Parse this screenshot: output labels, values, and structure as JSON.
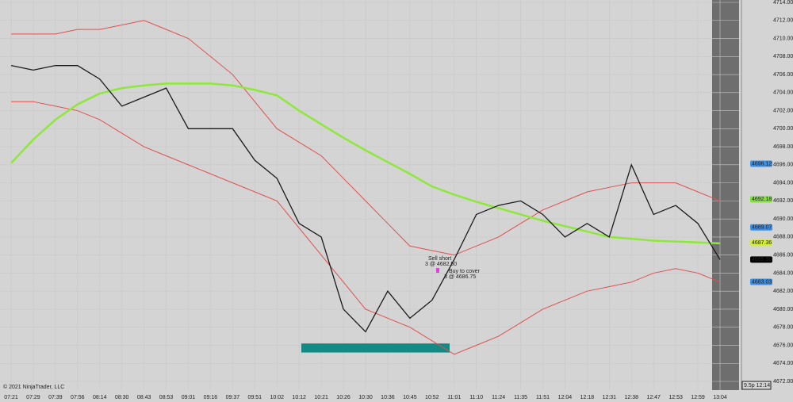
{
  "chart_data": {
    "type": "line",
    "categories": [
      "07:21",
      "07:29",
      "07:39",
      "07:56",
      "08:14",
      "08:30",
      "08:43",
      "08:53",
      "09:01",
      "09:16",
      "09:37",
      "09:51",
      "10:02",
      "10:12",
      "10:21",
      "10:26",
      "10:30",
      "10:36",
      "10:45",
      "10:52",
      "11:01",
      "11:10",
      "11:24",
      "11:35",
      "11:51",
      "12:04",
      "12:18",
      "12:31",
      "12:38",
      "12:47",
      "12:53",
      "12:59",
      "13:04"
    ],
    "series": [
      {
        "color": "#e05050",
        "values": [
          4710.5,
          4710.5,
          4710.5,
          4711,
          4711,
          4711.5,
          4712,
          4711,
          4710,
          4708,
          4706,
          4703,
          4700,
          4698.5,
          4697,
          4694.5,
          4692,
          4689.5,
          4687,
          4686.5,
          4686,
          4687,
          4688,
          4689.5,
          4691,
          4692,
          4693,
          4693.5,
          4694,
          4694,
          4694,
          4693,
          4692
        ]
      },
      {
        "color": "#e05050",
        "values": [
          4703,
          4703,
          4702.5,
          4702,
          4701,
          4699.5,
          4698,
          4697,
          4696,
          4695,
          4694,
          4693,
          4692,
          4689,
          4686,
          4683,
          4680,
          4679,
          4678,
          4676.5,
          4675,
          4676,
          4677,
          4678.5,
          4680,
          4681,
          4682,
          4682.5,
          4683,
          4684,
          4684.5,
          4684,
          4683
        ]
      },
      {
        "color": "#8ee83a",
        "values": [
          4696.2,
          4698.8,
          4701,
          4702.7,
          4703.9,
          4704.5,
          4704.8,
          4705,
          4705,
          4705,
          4704.8,
          4704.3,
          4703.7,
          4702,
          4700.5,
          4699,
          4697.6,
          4696.3,
          4695,
          4693.6,
          4692.7,
          4691.9,
          4691.2,
          4690.5,
          4689.8,
          4689.2,
          4688.6,
          4688,
          4687.8,
          4687.6,
          4687.5,
          4687.4,
          4687.3
        ]
      },
      {
        "color": "#1a1a1a",
        "values": [
          4707,
          4706.5,
          4707,
          4707,
          4705.5,
          4702.5,
          4703.5,
          4704.5,
          4700,
          4700,
          4700,
          4696.5,
          4694.5,
          4689.5,
          4688,
          4680,
          4677.5,
          4682,
          4679,
          4681,
          4685.5,
          4690.5,
          4691.5,
          4692,
          4690.5,
          4688,
          4689.5,
          4688,
          4696,
          4690.5,
          4691.5,
          4689.5,
          4685.5
        ]
      }
    ],
    "ylim": [
      4672,
      4714
    ],
    "yticks": [
      {
        "value": 4672,
        "label": "4672.00"
      },
      {
        "value": 4674,
        "label": "4674.00"
      },
      {
        "value": 4676,
        "label": "4676.00"
      },
      {
        "value": 4678,
        "label": "4678.00"
      },
      {
        "value": 4680,
        "label": "4680.00"
      },
      {
        "value": 4682,
        "label": "4682.00"
      },
      {
        "value": 4684,
        "label": "4684.00"
      },
      {
        "value": 4686,
        "label": "4686.00"
      },
      {
        "value": 4688,
        "label": "4688.00"
      },
      {
        "value": 4690,
        "label": "4690.00"
      },
      {
        "value": 4692,
        "label": "4692.00"
      },
      {
        "value": 4694,
        "label": "4694.00"
      },
      {
        "value": 4696,
        "label": "4696.00"
      },
      {
        "value": 4698,
        "label": "4698.00"
      },
      {
        "value": 4700,
        "label": "4700.00"
      },
      {
        "value": 4702,
        "label": "4702.00"
      },
      {
        "value": 4704,
        "label": "4704.00"
      },
      {
        "value": 4706,
        "label": "4706.00"
      },
      {
        "value": 4708,
        "label": "4708.00"
      },
      {
        "value": 4710,
        "label": "4710.00"
      },
      {
        "value": 4712,
        "label": "4712.00"
      },
      {
        "value": 4714,
        "label": "4714.00"
      }
    ],
    "grid": true,
    "price_markers": [
      {
        "value": 4696.12,
        "label": "4696.12",
        "color": "#3a8fe8"
      },
      {
        "value": 4692.18,
        "label": "4692.18",
        "color": "#7fe03a"
      },
      {
        "value": 4689.07,
        "label": "4689.07",
        "color": "#3a8fe8"
      },
      {
        "value": 4687.36,
        "label": "4687.36",
        "color": "#d4ee30"
      },
      {
        "value": 4685.5,
        "label": "4685.50",
        "color": "#000000"
      },
      {
        "value": 4683.03,
        "label": "4683.03",
        "color": "#3a8fe8"
      }
    ],
    "zone": {
      "low": 4675.2,
      "high": 4676.2,
      "color": "#138a84"
    },
    "annotations": [
      "Sell short",
      "3 @ 4682.50",
      "Buy to cover",
      "3 @ 4686.75"
    ],
    "copyright": "© 2021 NinjaTrader, LLC",
    "status": "9.5p 12:14"
  }
}
